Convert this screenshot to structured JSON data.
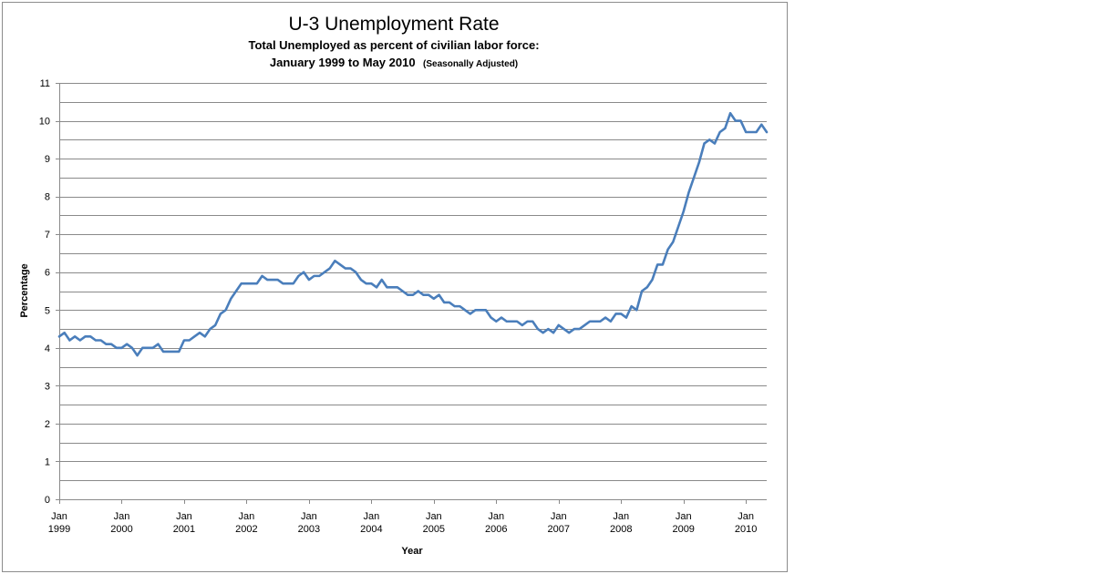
{
  "chart_data": {
    "type": "line",
    "title": "U-3 Unemployment Rate",
    "subtitle_line1": "Total Unemployed as percent of civilian labor force:",
    "subtitle_line2": "January 1999 to May 2010",
    "subtitle_note": "(Seasonally  Adjusted)",
    "xlabel": "Year",
    "ylabel": "Percentage",
    "ylim": [
      0,
      11
    ],
    "yticks": [
      "0",
      "1",
      "2",
      "3",
      "4",
      "5",
      "6",
      "7",
      "8",
      "9",
      "10",
      "11"
    ],
    "xticks": [
      {
        "month": "Jan",
        "year": "1999"
      },
      {
        "month": "Jan",
        "year": "2000"
      },
      {
        "month": "Jan",
        "year": "2001"
      },
      {
        "month": "Jan",
        "year": "2002"
      },
      {
        "month": "Jan",
        "year": "2003"
      },
      {
        "month": "Jan",
        "year": "2004"
      },
      {
        "month": "Jan",
        "year": "2005"
      },
      {
        "month": "Jan",
        "year": "2006"
      },
      {
        "month": "Jan",
        "year": "2007"
      },
      {
        "month": "Jan",
        "year": "2008"
      },
      {
        "month": "Jan",
        "year": "2009"
      },
      {
        "month": "Jan",
        "year": "2010"
      }
    ],
    "grid": true,
    "legend": "none",
    "line_color": "#4a7ebb",
    "x_start": "1999-01",
    "x_frequency": "monthly",
    "series": [
      {
        "values": [
          4.3,
          4.4,
          4.2,
          4.3,
          4.2,
          4.3,
          4.3,
          4.2,
          4.2,
          4.1,
          4.1,
          4.0,
          4.0,
          4.1,
          4.0,
          3.8,
          4.0,
          4.0,
          4.0,
          4.1,
          3.9,
          3.9,
          3.9,
          3.9,
          4.2,
          4.2,
          4.3,
          4.4,
          4.3,
          4.5,
          4.6,
          4.9,
          5.0,
          5.3,
          5.5,
          5.7,
          5.7,
          5.7,
          5.7,
          5.9,
          5.8,
          5.8,
          5.8,
          5.7,
          5.7,
          5.7,
          5.9,
          6.0,
          5.8,
          5.9,
          5.9,
          6.0,
          6.1,
          6.3,
          6.2,
          6.1,
          6.1,
          6.0,
          5.8,
          5.7,
          5.7,
          5.6,
          5.8,
          5.6,
          5.6,
          5.6,
          5.5,
          5.4,
          5.4,
          5.5,
          5.4,
          5.4,
          5.3,
          5.4,
          5.2,
          5.2,
          5.1,
          5.1,
          5.0,
          4.9,
          5.0,
          5.0,
          5.0,
          4.8,
          4.7,
          4.8,
          4.7,
          4.7,
          4.7,
          4.6,
          4.7,
          4.7,
          4.5,
          4.4,
          4.5,
          4.4,
          4.6,
          4.5,
          4.4,
          4.5,
          4.5,
          4.6,
          4.7,
          4.7,
          4.7,
          4.8,
          4.7,
          4.9,
          4.9,
          4.8,
          5.1,
          5.0,
          5.5,
          5.6,
          5.8,
          6.2,
          6.2,
          6.6,
          6.8,
          7.2,
          7.6,
          8.1,
          8.5,
          8.9,
          9.4,
          9.5,
          9.4,
          9.7,
          9.8,
          10.2,
          10.0,
          10.0,
          9.7,
          9.7,
          9.7,
          9.9,
          9.7
        ]
      }
    ]
  }
}
